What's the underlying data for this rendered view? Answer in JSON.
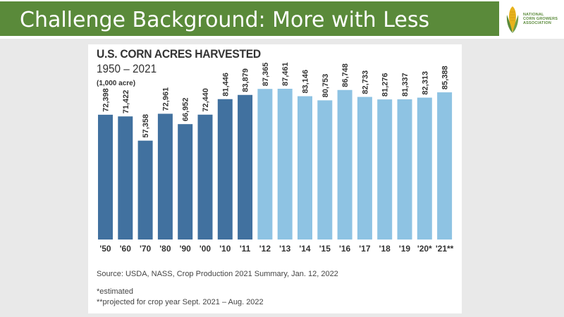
{
  "slide": {
    "title": "Challenge Background: More with Less"
  },
  "logo": {
    "lines": [
      "NATIONAL",
      "CORN GROWERS",
      "ASSOCIATION"
    ]
  },
  "colors": {
    "title_bar": "#5a8a3a",
    "dark_bar": "#41719f",
    "light_bar": "#8ec3e3",
    "label_text": "#333333"
  },
  "chart_data": {
    "type": "bar",
    "title": "U.S. CORN ACRES HARVESTED",
    "subtitle": "1950 – 2021",
    "unit": "(1,000 acre)",
    "categories": [
      "'50",
      "'60",
      "'70",
      "'80",
      "'90",
      "'00",
      "'10",
      "'11",
      "'12",
      "'13",
      "'14",
      "'15",
      "'16",
      "'17",
      "'18",
      "'19",
      "'20*",
      "'21**"
    ],
    "values": [
      72398,
      71422,
      57358,
      72961,
      66952,
      72440,
      81446,
      83879,
      87365,
      87461,
      83146,
      80753,
      86748,
      82733,
      81276,
      81337,
      82313,
      85388
    ],
    "value_labels": [
      "72,398",
      "71,422",
      "57,358",
      "72,961",
      "66,952",
      "72,440",
      "81,446",
      "83,879",
      "87,365",
      "87,461",
      "83,146",
      "80,753",
      "86,748",
      "82,733",
      "81,276",
      "81,337",
      "82,313",
      "85,388"
    ],
    "series_group": [
      "dark",
      "dark",
      "dark",
      "dark",
      "dark",
      "dark",
      "dark",
      "dark",
      "light",
      "light",
      "light",
      "light",
      "light",
      "light",
      "light",
      "light",
      "light",
      "light"
    ],
    "ylim": [
      0,
      100000
    ],
    "xlabel": "",
    "ylabel": "",
    "grid": false
  },
  "footnotes": {
    "source": "Source: USDA, NASS, Crop Production 2021 Summary, Jan. 12, 2022",
    "estimated": "*estimated",
    "projected": "**projected for crop year Sept. 2021 – Aug. 2022"
  }
}
